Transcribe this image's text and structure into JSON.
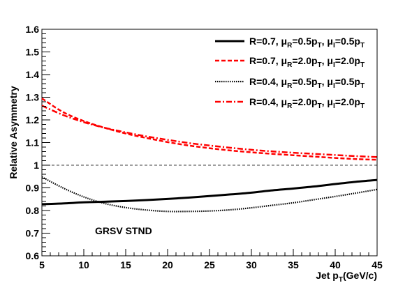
{
  "chart_data": {
    "type": "line",
    "title": "",
    "xlabel": {
      "main": "Jet p",
      "sub": "T",
      "tail": "(GeV/c)"
    },
    "ylabel": "Relative Asymmetry",
    "xlim": [
      5,
      45
    ],
    "ylim": [
      0.6,
      1.6
    ],
    "x_ticks": [
      "5",
      "10",
      "15",
      "20",
      "25",
      "30",
      "35",
      "40",
      "45"
    ],
    "y_ticks": [
      "0.6",
      "0.7",
      "0.8",
      "0.9",
      "1",
      "1.1",
      "1.2",
      "1.3",
      "1.4",
      "1.5",
      "1.6"
    ],
    "grid": false,
    "reference_line": {
      "y": 1.0,
      "style": "dashed"
    },
    "annotation": "GRSV STND",
    "legend_position": "top-right",
    "series": [
      {
        "style": "solid",
        "color": "#000000",
        "legend": {
          "a": "R=0.7, ",
          "m1": "μ",
          "s1": "R",
          "b": "=0.5p",
          "s2": "T",
          "c": ", μ",
          "s3": "I",
          "d": "=0.5p",
          "s4": "T"
        },
        "x": [
          5,
          7.5,
          10,
          12.5,
          15,
          17.5,
          20,
          22.5,
          25,
          27.5,
          30,
          32.5,
          35,
          37.5,
          40,
          42.5,
          45
        ],
        "values": [
          0.828,
          0.831,
          0.836,
          0.839,
          0.842,
          0.846,
          0.851,
          0.857,
          0.864,
          0.871,
          0.879,
          0.889,
          0.897,
          0.906,
          0.917,
          0.927,
          0.935
        ]
      },
      {
        "style": "dashed",
        "color": "#ff0000",
        "legend": {
          "a": "R=0.7, ",
          "m1": "μ",
          "s1": "R",
          "b": "=2.0p",
          "s2": "T",
          "c": ", μ",
          "s3": "I",
          "d": "=2.0p",
          "s4": "T"
        },
        "x": [
          5,
          7.5,
          10,
          12.5,
          15,
          17.5,
          20,
          22.5,
          25,
          27.5,
          30,
          32.5,
          35,
          37.5,
          40,
          42.5,
          45
        ],
        "values": [
          1.295,
          1.235,
          1.195,
          1.165,
          1.14,
          1.12,
          1.102,
          1.087,
          1.075,
          1.065,
          1.057,
          1.05,
          1.044,
          1.038,
          1.032,
          1.027,
          1.024
        ]
      },
      {
        "style": "dotted",
        "color": "#000000",
        "legend": {
          "a": "R=0.4, ",
          "m1": "μ",
          "s1": "R",
          "b": "=0.5p",
          "s2": "T",
          "c": ", μ",
          "s3": "I",
          "d": "=0.5p",
          "s4": "T"
        },
        "x": [
          5,
          7.5,
          10,
          12.5,
          15,
          17.5,
          20,
          22.5,
          25,
          27.5,
          30,
          32.5,
          35,
          37.5,
          40,
          42.5,
          45
        ],
        "values": [
          0.948,
          0.9,
          0.86,
          0.831,
          0.813,
          0.802,
          0.796,
          0.796,
          0.798,
          0.803,
          0.812,
          0.823,
          0.834,
          0.848,
          0.862,
          0.877,
          0.893
        ]
      },
      {
        "style": "dash-dot",
        "color": "#ff0000",
        "legend": {
          "a": "R=0.4, ",
          "m1": "μ",
          "s1": "R",
          "b": "=2.0p",
          "s2": "T",
          "c": ", μ",
          "s3": "I",
          "d": "=2.0p",
          "s4": "T"
        },
        "x": [
          5,
          7.5,
          10,
          12.5,
          15,
          17.5,
          20,
          22.5,
          25,
          27.5,
          30,
          32.5,
          35,
          37.5,
          40,
          42.5,
          45
        ],
        "values": [
          1.263,
          1.222,
          1.19,
          1.165,
          1.145,
          1.127,
          1.112,
          1.098,
          1.087,
          1.077,
          1.068,
          1.061,
          1.055,
          1.05,
          1.045,
          1.04,
          1.036
        ]
      }
    ]
  }
}
